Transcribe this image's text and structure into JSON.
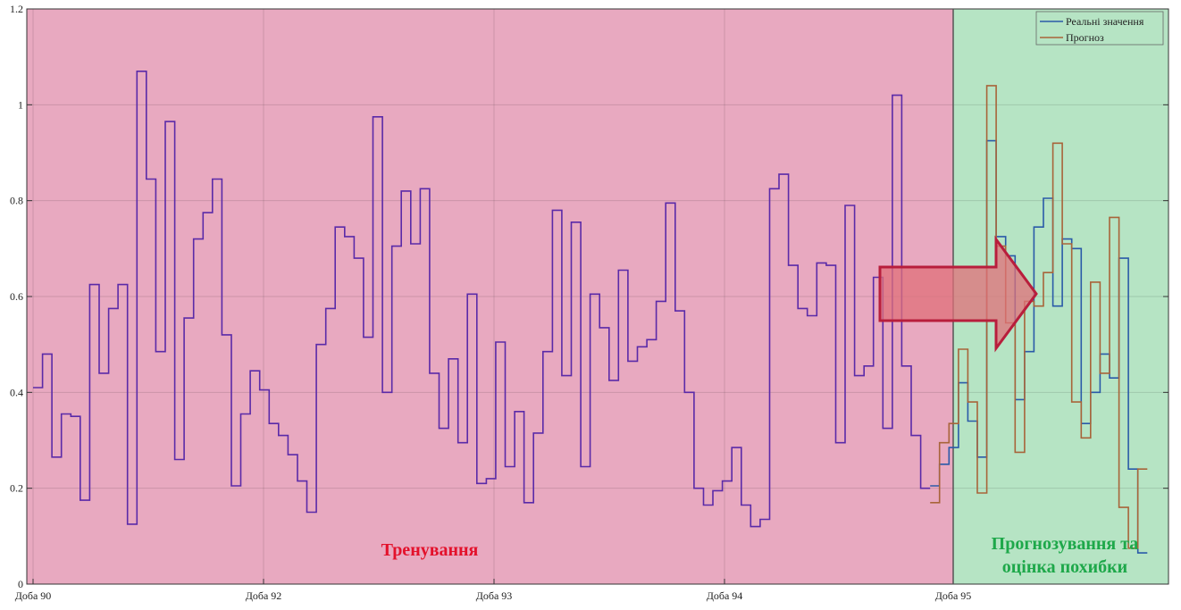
{
  "chart_data": {
    "type": "line",
    "step": true,
    "x_tick_labels": [
      "Доба 90",
      "Доба 92",
      "Доба 93",
      "Доба 94",
      "Доба 95"
    ],
    "y_tick_labels": [
      "0",
      "0.2",
      "0.4",
      "0.6",
      "0.8",
      "1",
      "1.2"
    ],
    "ylim": [
      0,
      1.2
    ],
    "grid": true,
    "legend_position": "top-right",
    "regions": [
      {
        "label": "Тренування",
        "color": "#e8a9c0"
      },
      {
        "label_line1": "Прогнозування та",
        "label_line2": "оцінка похибки",
        "color": "#b6e4c4"
      }
    ],
    "training": {
      "color": "#5a2aa8",
      "values": [
        0.41,
        0.48,
        0.265,
        0.355,
        0.35,
        0.175,
        0.625,
        0.44,
        0.575,
        0.625,
        0.125,
        1.07,
        0.845,
        0.485,
        0.965,
        0.26,
        0.555,
        0.72,
        0.775,
        0.845,
        0.52,
        0.205,
        0.355,
        0.445,
        0.405,
        0.335,
        0.31,
        0.27,
        0.215,
        0.15,
        0.5,
        0.575,
        0.745,
        0.725,
        0.68,
        0.515,
        0.975,
        0.4,
        0.705,
        0.82,
        0.71,
        0.825,
        0.44,
        0.325,
        0.47,
        0.295,
        0.605,
        0.21,
        0.22,
        0.505,
        0.245,
        0.36,
        0.17,
        0.315,
        0.485,
        0.78,
        0.435,
        0.755,
        0.245,
        0.605,
        0.535,
        0.425,
        0.655,
        0.465,
        0.495,
        0.51,
        0.59,
        0.795,
        0.57,
        0.4,
        0.2,
        0.165,
        0.195,
        0.215,
        0.285,
        0.165,
        0.12,
        0.135,
        0.825,
        0.855,
        0.665,
        0.575,
        0.56,
        0.67,
        0.665,
        0.295,
        0.79,
        0.435,
        0.455,
        0.64,
        0.325,
        1.02,
        0.455,
        0.31,
        0.2
      ]
    },
    "series": [
      {
        "name": "Реальні значення",
        "color": "#2a5aa8",
        "values": [
          0.205,
          0.25,
          0.285,
          0.42,
          0.34,
          0.265,
          0.925,
          0.725,
          0.685,
          0.385,
          0.485,
          0.745,
          0.805,
          0.58,
          0.72,
          0.7,
          0.335,
          0.4,
          0.48,
          0.43,
          0.68,
          0.24,
          0.065
        ]
      },
      {
        "name": "Прогноз",
        "color": "#a8643a",
        "values": [
          0.17,
          0.295,
          0.335,
          0.49,
          0.38,
          0.19,
          1.04,
          0.705,
          0.545,
          0.275,
          0.59,
          0.58,
          0.65,
          0.92,
          0.71,
          0.38,
          0.305,
          0.63,
          0.44,
          0.765,
          0.16,
          0.075,
          0.24
        ]
      }
    ]
  }
}
